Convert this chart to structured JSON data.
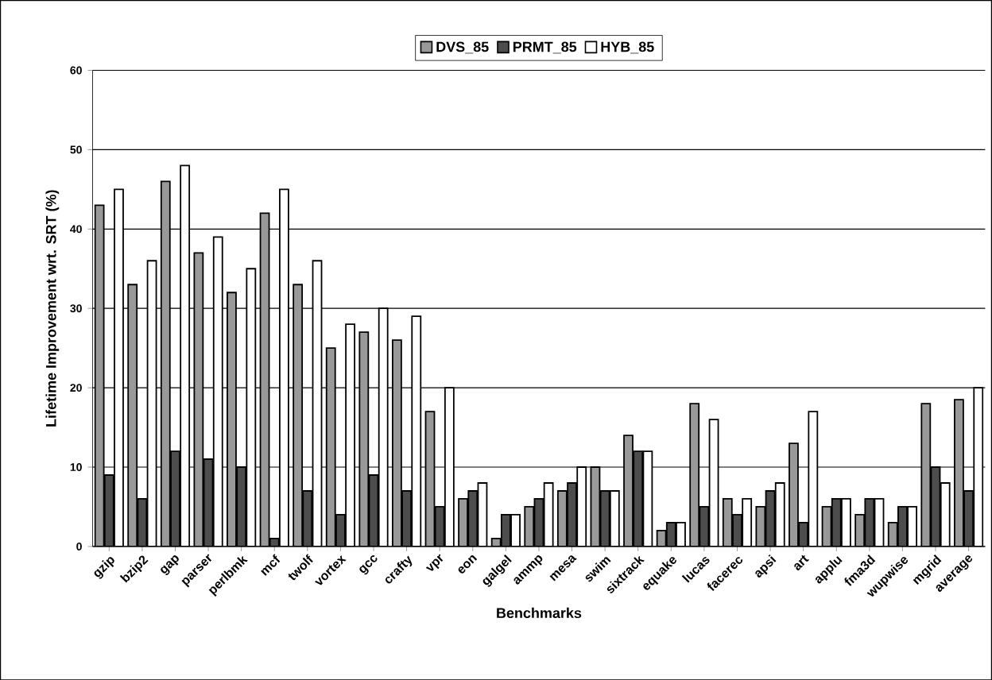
{
  "chart_data": {
    "type": "bar",
    "xlabel": "Benchmarks",
    "ylabel": "Lifetime Improvement wrt. SRT (%)",
    "categories": [
      "gzip",
      "bzip2",
      "gap",
      "parser",
      "perlbmk",
      "mcf",
      "twolf",
      "vortex",
      "gcc",
      "crafty",
      "vpr",
      "eon",
      "galgel",
      "ammp",
      "mesa",
      "swim",
      "sixtrack",
      "equake",
      "lucas",
      "facerec",
      "apsi",
      "art",
      "applu",
      "fma3d",
      "wupwise",
      "mgrid",
      "average"
    ],
    "series": [
      {
        "name": "DVS_85",
        "color": "#999999",
        "values": [
          43,
          33,
          46,
          37,
          32,
          42,
          33,
          25,
          27,
          26,
          17,
          6,
          1,
          5,
          7,
          10,
          14,
          2,
          18,
          6,
          5,
          13,
          5,
          4,
          3,
          18,
          18.5
        ]
      },
      {
        "name": "PRMT_85",
        "color": "#4d4d4d",
        "values": [
          9,
          6,
          12,
          11,
          10,
          1,
          7,
          4,
          9,
          7,
          5,
          7,
          4,
          6,
          8,
          7,
          12,
          3,
          5,
          4,
          7,
          3,
          6,
          6,
          5,
          10,
          7
        ]
      },
      {
        "name": "HYB_85",
        "color": "#ffffff",
        "values": [
          45,
          36,
          48,
          39,
          35,
          45,
          36,
          28,
          30,
          29,
          20,
          8,
          4,
          8,
          10,
          7,
          12,
          3,
          16,
          6,
          8,
          17,
          6,
          6,
          5,
          8,
          20
        ]
      }
    ],
    "ylim": [
      0,
      60
    ],
    "yticks": [
      0,
      10,
      20,
      30,
      40,
      50,
      60
    ],
    "grid": "y",
    "legend": "top"
  }
}
